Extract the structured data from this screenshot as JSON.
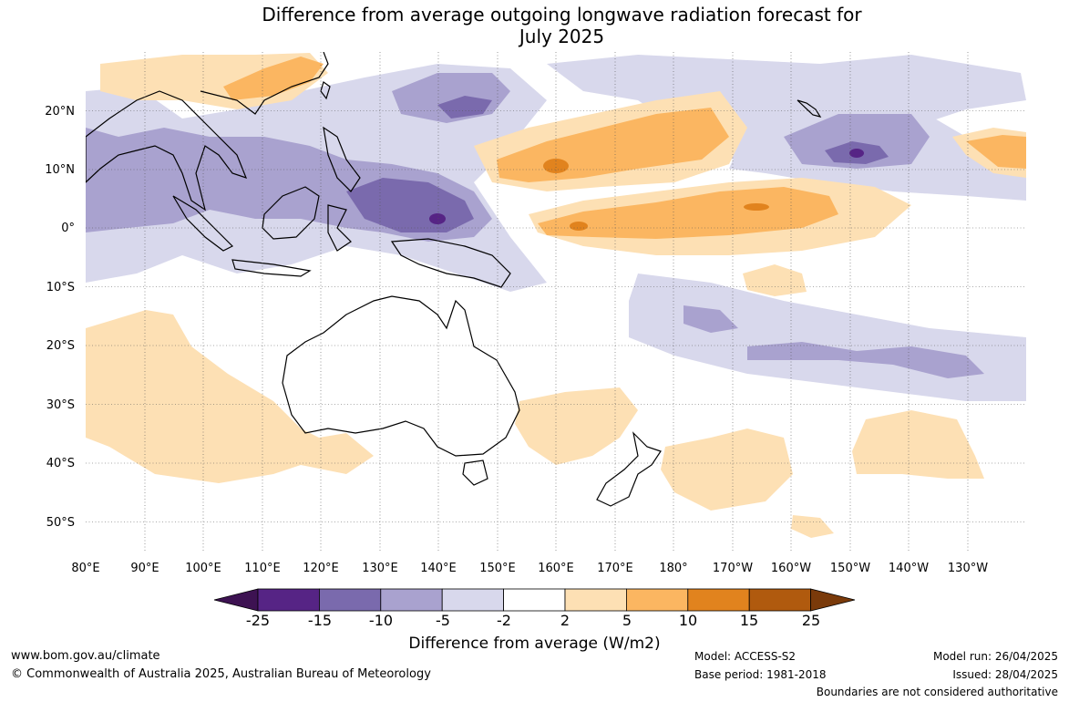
{
  "title_line1": "Difference from average outgoing longwave radiation forecast for",
  "title_line2": "July 2025",
  "lat_labels": [
    "20°N",
    "10°N",
    "0°",
    "10°S",
    "20°S",
    "30°S",
    "40°S",
    "50°S"
  ],
  "lon_labels": [
    "80°E",
    "90°E",
    "100°E",
    "110°E",
    "120°E",
    "130°E",
    "140°E",
    "150°E",
    "160°E",
    "170°E",
    "180°",
    "170°W",
    "160°W",
    "150°W",
    "140°W",
    "130°W"
  ],
  "colorbar": {
    "colors": [
      "#3d1252",
      "#562485",
      "#7a6aad",
      "#a9a2cf",
      "#d8d8ec",
      "#ffffff",
      "#fde0b4",
      "#fbb661",
      "#e1831e",
      "#b05a0e",
      "#7a3a0a"
    ],
    "tick_labels": [
      "-25",
      "-15",
      "-10",
      "-5",
      "-2",
      "2",
      "5",
      "10",
      "15",
      "25"
    ],
    "title": "Difference from average (W/m2)"
  },
  "footer": {
    "website": "www.bom.gov.au/climate",
    "copyright": "© Commonwealth of Australia 2025, Australian Bureau of Meteorology",
    "model": "Model: ACCESS-S2",
    "base_period": "Base period: 1981-2018",
    "model_run": "Model run: 26/04/2025",
    "issued": "Issued: 28/04/2025",
    "disclaimer": "Boundaries are not considered authoritative"
  }
}
